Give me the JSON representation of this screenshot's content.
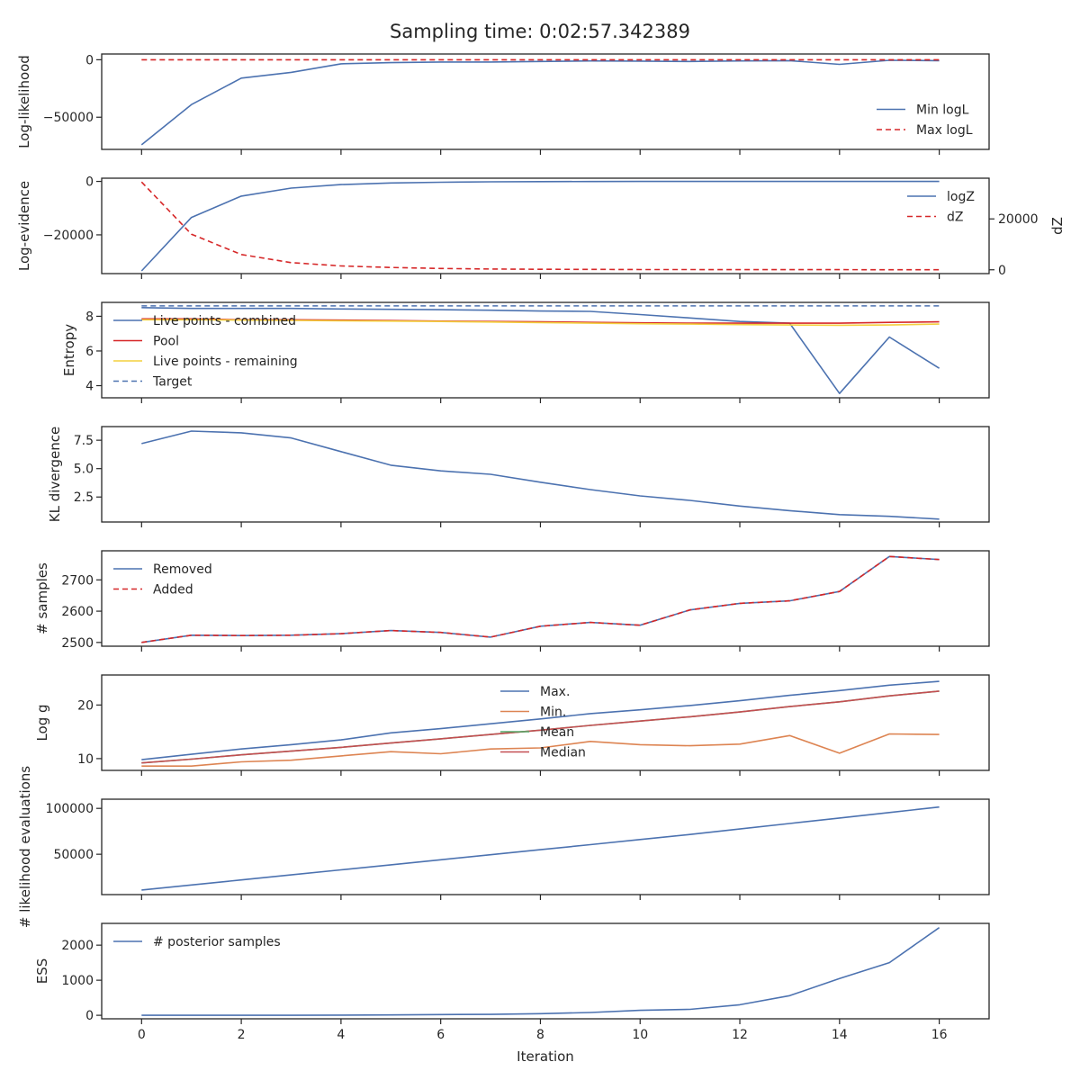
{
  "title": "Sampling time: 0:02:57.342389",
  "xlabel": "Iteration",
  "x_ticks": [
    0,
    2,
    4,
    6,
    8,
    10,
    12,
    14,
    16
  ],
  "colors": {
    "blue": "#4c72b0",
    "red": "#d62728",
    "red_dashed": "#d62728",
    "yellow": "#f4d03f",
    "orange": "#dd8452",
    "green": "#55a868",
    "brown": "#c44e52",
    "axis": "#262626"
  },
  "chart_data": [
    {
      "type": "line",
      "ylabel": "Log-likelihood",
      "ylim": [
        -78000,
        5000
      ],
      "yticks": [
        0,
        -50000
      ],
      "ytick_labels": [
        "0",
        "−50000"
      ],
      "legend": "lower-right",
      "x": [
        0,
        1,
        2,
        3,
        4,
        5,
        6,
        7,
        8,
        9,
        10,
        11,
        12,
        13,
        14,
        15,
        16
      ],
      "series": [
        {
          "name": "Min logL",
          "color": "blue",
          "dash": false,
          "values": [
            -74000,
            -39000,
            -16000,
            -11000,
            -3500,
            -2500,
            -2000,
            -2000,
            -1500,
            -1000,
            -1200,
            -1500,
            -1000,
            -800,
            -4000,
            -500,
            -800
          ]
        },
        {
          "name": "Max logL",
          "color": "red_dashed",
          "dash": true,
          "values": [
            0,
            0,
            0,
            0,
            0,
            0,
            0,
            0,
            0,
            0,
            0,
            0,
            0,
            0,
            0,
            0,
            0
          ]
        }
      ]
    },
    {
      "type": "line",
      "ylabel": "Log-evidence",
      "ylabel2": "dZ",
      "ylim": [
        -34500,
        1200
      ],
      "yticks": [
        0,
        -20000
      ],
      "ytick_labels": [
        "0",
        "−20000"
      ],
      "ylim2": [
        -1500,
        36000
      ],
      "yticks2": [
        0,
        20000
      ],
      "ytick2_labels": [
        "0",
        "20000"
      ],
      "legend": "upper-right",
      "x": [
        0,
        1,
        2,
        3,
        4,
        5,
        6,
        7,
        8,
        9,
        10,
        11,
        12,
        13,
        14,
        15,
        16
      ],
      "series": [
        {
          "name": "logZ",
          "color": "blue",
          "dash": false,
          "axis": "left",
          "values": [
            -33500,
            -13500,
            -5500,
            -2500,
            -1200,
            -600,
            -300,
            -150,
            -80,
            -40,
            -20,
            -10,
            -5,
            -2,
            -1,
            0,
            0
          ]
        },
        {
          "name": "dZ",
          "color": "red_dashed",
          "dash": true,
          "axis": "right",
          "values": [
            34500,
            14000,
            6000,
            2800,
            1500,
            900,
            500,
            300,
            200,
            150,
            100,
            80,
            60,
            50,
            40,
            30,
            20
          ]
        }
      ]
    },
    {
      "type": "line",
      "ylabel": "Entropy",
      "ylim": [
        3.3,
        8.8
      ],
      "yticks": [
        8,
        6,
        4
      ],
      "ytick_labels": [
        "8",
        "6",
        "4"
      ],
      "legend": "upper-left",
      "x": [
        0,
        1,
        2,
        3,
        4,
        5,
        6,
        7,
        8,
        9,
        10,
        11,
        12,
        13,
        14,
        15,
        16
      ],
      "series": [
        {
          "name": "Live points - combined",
          "color": "blue",
          "dash": false,
          "values": [
            8.5,
            8.45,
            8.45,
            8.45,
            8.42,
            8.4,
            8.38,
            8.35,
            8.3,
            8.28,
            8.1,
            7.9,
            7.7,
            7.6,
            3.55,
            6.8,
            5.0
          ]
        },
        {
          "name": "Pool",
          "color": "red",
          "dash": false,
          "values": [
            7.85,
            7.85,
            7.8,
            7.8,
            7.78,
            7.75,
            7.72,
            7.7,
            7.68,
            7.65,
            7.62,
            7.6,
            7.6,
            7.6,
            7.6,
            7.65,
            7.68
          ]
        },
        {
          "name": "Live points - remaining",
          "color": "yellow",
          "dash": false,
          "values": [
            7.8,
            7.8,
            7.78,
            7.76,
            7.74,
            7.72,
            7.7,
            7.67,
            7.64,
            7.6,
            7.57,
            7.55,
            7.52,
            7.5,
            7.48,
            7.5,
            7.55
          ]
        },
        {
          "name": "Target",
          "color": "blue",
          "dash": true,
          "values": [
            8.6,
            8.6,
            8.6,
            8.6,
            8.6,
            8.6,
            8.6,
            8.6,
            8.6,
            8.6,
            8.6,
            8.6,
            8.6,
            8.6,
            8.6,
            8.6,
            8.6
          ]
        }
      ]
    },
    {
      "type": "line",
      "ylabel": "KL divergence",
      "ylim": [
        0.3,
        8.7
      ],
      "yticks": [
        7.5,
        5.0,
        2.5
      ],
      "ytick_labels": [
        "7.5",
        "5.0",
        "2.5"
      ],
      "legend": "none",
      "x": [
        0,
        1,
        2,
        3,
        4,
        5,
        6,
        7,
        8,
        9,
        10,
        11,
        12,
        13,
        14,
        15,
        16
      ],
      "series": [
        {
          "name": "",
          "color": "blue",
          "dash": false,
          "values": [
            7.2,
            8.3,
            8.15,
            7.7,
            6.5,
            5.3,
            4.8,
            4.5,
            3.8,
            3.15,
            2.6,
            2.2,
            1.7,
            1.3,
            0.95,
            0.8,
            0.55
          ]
        }
      ]
    },
    {
      "type": "line",
      "ylabel": "# samples",
      "ylim": [
        2488,
        2793
      ],
      "yticks": [
        2700,
        2600,
        2500
      ],
      "ytick_labels": [
        "2700",
        "2600",
        "2500"
      ],
      "legend": "upper-left",
      "x": [
        0,
        1,
        2,
        3,
        4,
        5,
        6,
        7,
        8,
        9,
        10,
        11,
        12,
        13,
        14,
        15,
        16
      ],
      "series": [
        {
          "name": "Removed",
          "color": "blue",
          "dash": false,
          "values": [
            2500,
            2523,
            2522,
            2523,
            2528,
            2538,
            2532,
            2517,
            2552,
            2564,
            2555,
            2604,
            2625,
            2633,
            2663,
            2775,
            2765
          ]
        },
        {
          "name": "Added",
          "color": "red_dashed",
          "dash": true,
          "values": [
            2500,
            2523,
            2522,
            2523,
            2528,
            2538,
            2532,
            2517,
            2552,
            2564,
            2555,
            2604,
            2625,
            2633,
            2663,
            2775,
            2765
          ]
        }
      ]
    },
    {
      "type": "line",
      "ylabel": "Log g",
      "ylim": [
        7.8,
        25.6
      ],
      "yticks": [
        20,
        10
      ],
      "ytick_labels": [
        "20",
        "10"
      ],
      "legend": "upper-center",
      "x": [
        0,
        1,
        2,
        3,
        4,
        5,
        6,
        7,
        8,
        9,
        10,
        11,
        12,
        13,
        14,
        15,
        16
      ],
      "series": [
        {
          "name": "Max.",
          "color": "blue",
          "dash": false,
          "values": [
            9.8,
            10.8,
            11.8,
            12.6,
            13.5,
            14.8,
            15.6,
            16.5,
            17.4,
            18.4,
            19.1,
            19.9,
            20.8,
            21.8,
            22.7,
            23.7,
            24.4
          ]
        },
        {
          "name": "Min.",
          "color": "orange",
          "dash": false,
          "values": [
            8.6,
            8.6,
            9.4,
            9.7,
            10.5,
            11.3,
            10.9,
            11.8,
            12.0,
            13.2,
            12.6,
            12.4,
            12.7,
            14.3,
            11.0,
            14.6,
            14.5
          ]
        },
        {
          "name": "Mean",
          "color": "green",
          "dash": false,
          "values": [
            9.2,
            9.9,
            10.7,
            11.4,
            12.1,
            12.9,
            13.7,
            14.5,
            15.3,
            16.2,
            17.0,
            17.8,
            18.7,
            19.7,
            20.6,
            21.7,
            22.6
          ]
        },
        {
          "name": "Median",
          "color": "brown",
          "dash": false,
          "values": [
            9.2,
            9.9,
            10.7,
            11.4,
            12.1,
            12.9,
            13.7,
            14.5,
            15.3,
            16.2,
            17.0,
            17.8,
            18.7,
            19.7,
            20.6,
            21.7,
            22.6
          ]
        }
      ]
    },
    {
      "type": "line",
      "ylabel": "# likelihood evaluations",
      "ylim": [
        6000,
        110000
      ],
      "yticks": [
        100000,
        50000
      ],
      "ytick_labels": [
        "100000",
        "50000"
      ],
      "legend": "none",
      "x": [
        0,
        1,
        2,
        3,
        4,
        5,
        6,
        7,
        8,
        9,
        10,
        11,
        12,
        13,
        14,
        15,
        16
      ],
      "series": [
        {
          "name": "",
          "color": "blue",
          "dash": false,
          "values": [
            11000,
            16500,
            22000,
            27500,
            33000,
            38500,
            44000,
            49500,
            55000,
            60500,
            66000,
            71500,
            77500,
            83500,
            89500,
            95500,
            101500
          ]
        }
      ]
    },
    {
      "type": "line",
      "ylabel": "ESS",
      "ylim": [
        -100,
        2620
      ],
      "yticks": [
        2000,
        1000,
        0
      ],
      "ytick_labels": [
        "2000",
        "1000",
        "0"
      ],
      "legend": "upper-left",
      "x": [
        0,
        1,
        2,
        3,
        4,
        5,
        6,
        7,
        8,
        9,
        10,
        11,
        12,
        13,
        14,
        15,
        16
      ],
      "series": [
        {
          "name": "# posterior samples",
          "color": "blue",
          "dash": false,
          "values": [
            0,
            0,
            0,
            0,
            5,
            10,
            20,
            25,
            45,
            80,
            140,
            170,
            300,
            560,
            1050,
            1500,
            2500
          ]
        }
      ]
    }
  ]
}
